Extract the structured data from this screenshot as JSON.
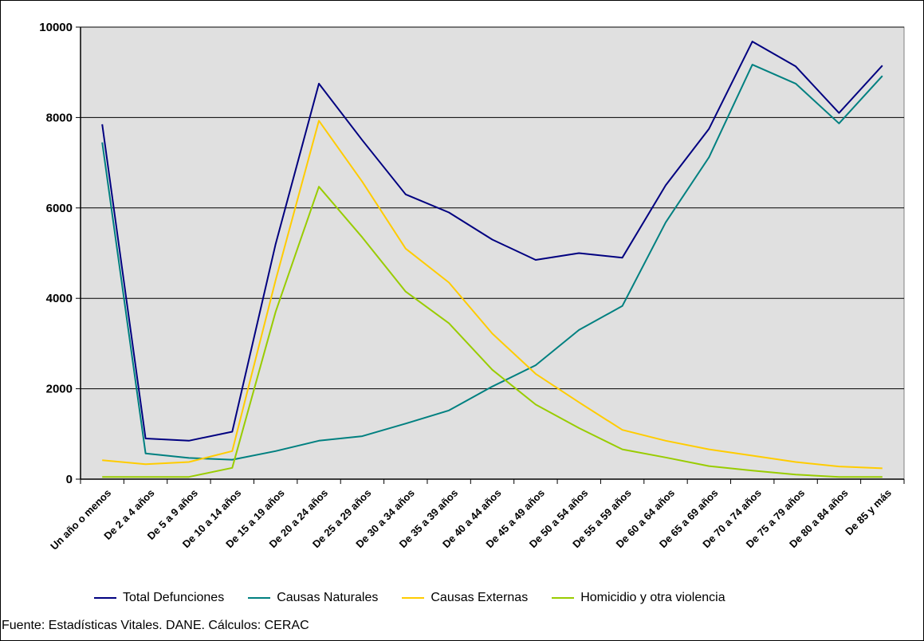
{
  "chart_data": {
    "type": "line",
    "title": "",
    "xlabel": "",
    "ylabel": "",
    "ylim": [
      0,
      10000
    ],
    "yticks": [
      0,
      2000,
      4000,
      6000,
      8000,
      10000
    ],
    "grid": true,
    "legend_position": "bottom",
    "categories": [
      "Un año o menos",
      "De 2 a 4 años",
      "De 5 a 9 años",
      "De 10 a 14 años",
      "De 15 a 19 años",
      "De 20 a 24 años",
      "De 25 a 29 años",
      "De 30 a 34 años",
      "De 35 a 39 años",
      "De 40 a 44 años",
      "De 45 a 49 años",
      "De 50 a 54 años",
      "De 55 a 59 años",
      "De 60 a 64 años",
      "De 65 a 69 años",
      "De 70 a 74 años",
      "De 75 a 79 años",
      "De 80 a 84 años",
      "De 85 y más"
    ],
    "series": [
      {
        "name": "Total Defunciones",
        "color": "#000080",
        "values": [
          7850,
          900,
          850,
          1050,
          5200,
          8750,
          7500,
          6300,
          5900,
          5300,
          4850,
          5000,
          4900,
          6500,
          7750,
          9680,
          9130,
          8100,
          9150
        ]
      },
      {
        "name": "Causas Naturales",
        "color": "#008080",
        "values": [
          7450,
          570,
          470,
          430,
          620,
          850,
          950,
          1230,
          1520,
          2050,
          2520,
          3300,
          3830,
          5680,
          7120,
          9170,
          8750,
          7870,
          8920
        ]
      },
      {
        "name": "Causas Externas",
        "color": "#FFCC00",
        "values": [
          420,
          330,
          380,
          620,
          4400,
          7930,
          6580,
          5100,
          4350,
          3220,
          2330,
          1700,
          1090,
          850,
          660,
          520,
          380,
          280,
          240
        ]
      },
      {
        "name": "Homicidio y otra violencia",
        "color": "#99CC00",
        "values": [
          50,
          50,
          50,
          250,
          3700,
          6470,
          5350,
          4150,
          3450,
          2420,
          1650,
          1130,
          660,
          480,
          290,
          190,
          100,
          50,
          50
        ]
      }
    ]
  },
  "source_note": "Fuente: Estadísticas Vitales. DANE. Cálculos: CERAC"
}
